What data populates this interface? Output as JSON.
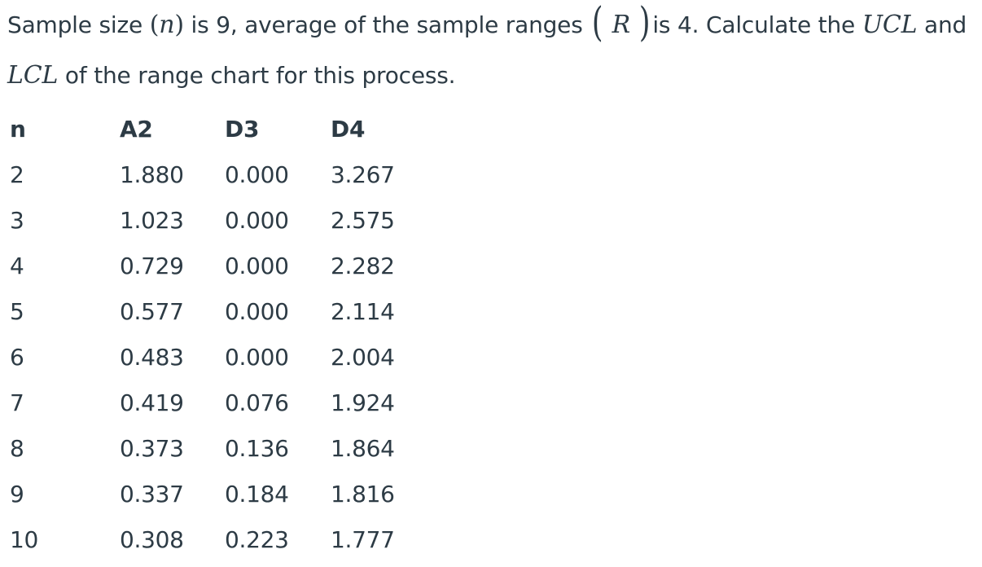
{
  "question": {
    "line1_part1": "Sample size ",
    "n_symbol_open": "(",
    "n_symbol": "n",
    "n_symbol_close": ")",
    "line1_part2": " is 9, average of the sample ranges ",
    "r_open_paren": "(",
    "r_symbol": "R",
    "r_close_paren": ")",
    "line1_part3": "is 4. Calculate the ",
    "ucl_symbol": "UCL",
    "line1_part4": " and",
    "lcl_symbol": "LCL",
    "line2_part1": " of the range chart for this process."
  },
  "table": {
    "headers": [
      "n",
      "A2",
      "D3",
      "D4"
    ],
    "rows": [
      [
        "2",
        "1.880",
        "0.000",
        "3.267"
      ],
      [
        "3",
        "1.023",
        "0.000",
        "2.575"
      ],
      [
        "4",
        "0.729",
        "0.000",
        "2.282"
      ],
      [
        "5",
        "0.577",
        "0.000",
        "2.114"
      ],
      [
        "6",
        "0.483",
        "0.000",
        "2.004"
      ],
      [
        "7",
        "0.419",
        "0.076",
        "1.924"
      ],
      [
        "8",
        "0.373",
        "0.136",
        "1.864"
      ],
      [
        "9",
        "0.337",
        "0.184",
        "1.816"
      ],
      [
        "10",
        "0.308",
        "0.223",
        "1.777"
      ]
    ]
  }
}
